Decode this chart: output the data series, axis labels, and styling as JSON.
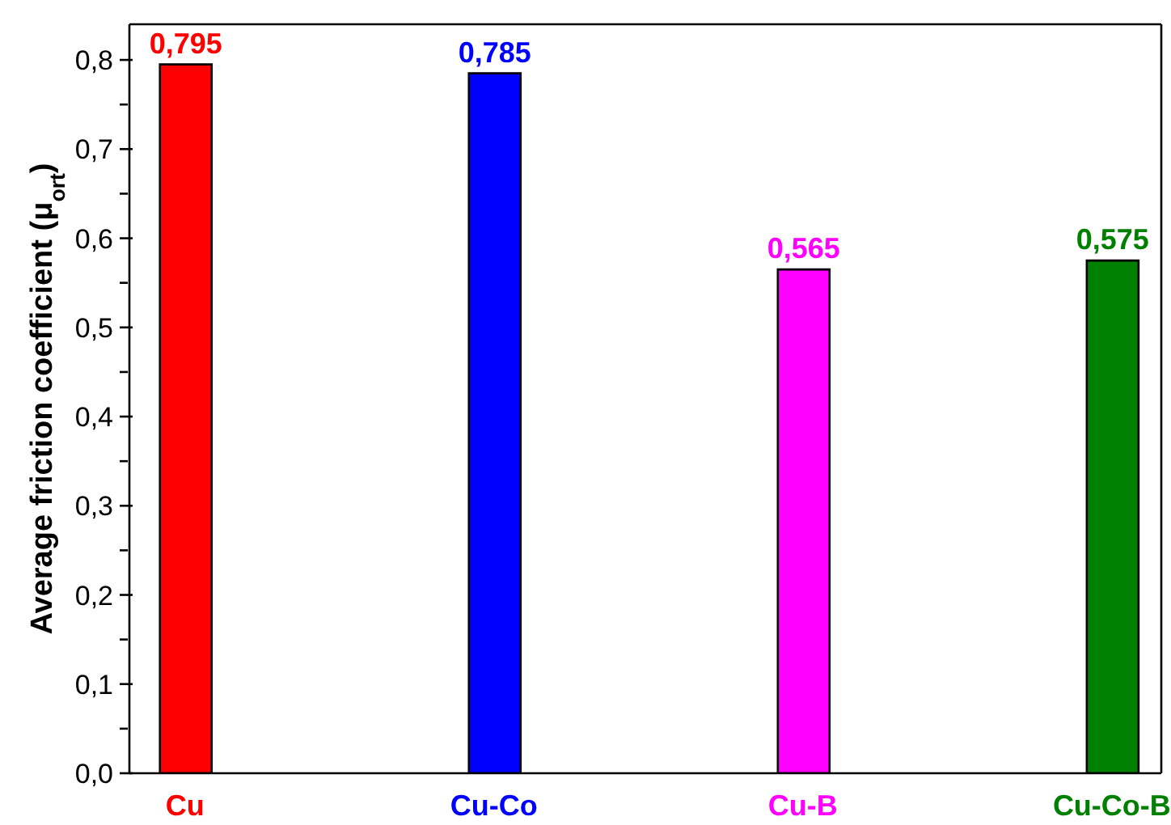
{
  "chart_data": {
    "type": "bar",
    "ylabel": "Average friction coefficient (μ$_{ort}$)",
    "categories": [
      "Cu",
      "Cu-Co",
      "Cu-B",
      "Cu-Co-B"
    ],
    "values": [
      0.795,
      0.785,
      0.565,
      0.575
    ],
    "colors": [
      "#ff0000",
      "#0000ff",
      "#ff00ff",
      "#008000"
    ],
    "value_labels": [
      "0,795",
      "0,785",
      "0,565",
      "0,575"
    ],
    "ylim": [
      0,
      0.84
    ],
    "yticks": [
      {
        "value": 0,
        "label": "0,0"
      },
      {
        "value": 0.05,
        "label": null
      },
      {
        "value": 0.1,
        "label": "0,1"
      },
      {
        "value": 0.15,
        "label": null
      },
      {
        "value": 0.2,
        "label": "0,2"
      },
      {
        "value": 0.25,
        "label": null
      },
      {
        "value": 0.3,
        "label": "0,3"
      },
      {
        "value": 0.35,
        "label": null
      },
      {
        "value": 0.4,
        "label": "0,4"
      },
      {
        "value": 0.45,
        "label": null
      },
      {
        "value": 0.5,
        "label": "0,5"
      },
      {
        "value": 0.55,
        "label": null
      },
      {
        "value": 0.6,
        "label": "0,6"
      },
      {
        "value": 0.65,
        "label": null
      },
      {
        "value": 0.7,
        "label": "0,7"
      },
      {
        "value": 0.75,
        "label": null
      },
      {
        "value": 0.8,
        "label": "0,8"
      }
    ],
    "grid": false,
    "legend": false
  }
}
